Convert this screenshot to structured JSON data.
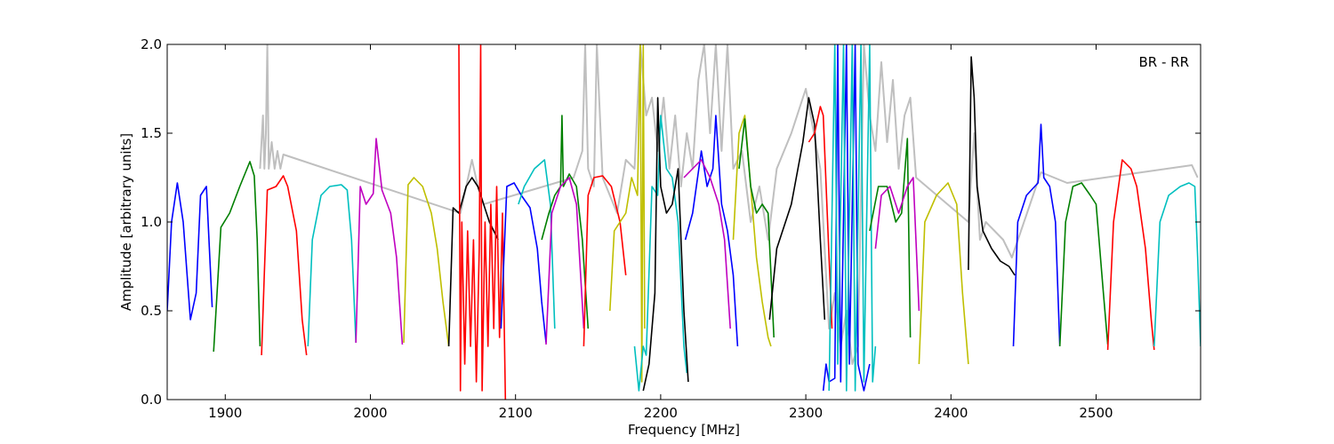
{
  "chart_data": {
    "type": "line",
    "annotation": "BR - RR",
    "xlabel": "Frequency [MHz]",
    "ylabel": "Amplitude [arbitrary units]",
    "xlim": [
      1860,
      2572
    ],
    "ylim": [
      0.0,
      2.0
    ],
    "x_ticks": [
      1900,
      2000,
      2100,
      2200,
      2300,
      2400,
      2500
    ],
    "x_tick_labels": [
      "1900",
      "2000",
      "2100",
      "2200",
      "2300",
      "2400",
      "2500"
    ],
    "y_ticks": [
      0.0,
      0.5,
      1.0,
      1.5,
      2.0
    ],
    "y_tick_labels": [
      "0.0",
      "0.5",
      "1.0",
      "1.5",
      "2.0"
    ],
    "grid": false,
    "colors": {
      "background_series": "#bfbfbf",
      "blue": "#0000ff",
      "green": "#007f00",
      "red": "#ff0000",
      "cyan": "#00bfbf",
      "magenta": "#bf00bf",
      "olive": "#bfbf00",
      "black": "#000000"
    },
    "background_series": {
      "color": "background_series",
      "x": [
        1924,
        1926,
        1927,
        1928,
        1929,
        1930,
        1932,
        1934,
        1936,
        1938,
        1940,
        2062,
        2066,
        2070,
        2074,
        2078,
        2140,
        2146,
        2148,
        2150,
        2154,
        2156,
        2160,
        2170,
        2176,
        2182,
        2186,
        2190,
        2194,
        2198,
        2202,
        2206,
        2210,
        2214,
        2218,
        2222,
        2226,
        2230,
        2234,
        2238,
        2242,
        2246,
        2250,
        2256,
        2262,
        2268,
        2274,
        2280,
        2290,
        2300,
        2310,
        2316,
        2320,
        2324,
        2328,
        2332,
        2336,
        2340,
        2344,
        2348,
        2352,
        2356,
        2360,
        2364,
        2368,
        2372,
        2376,
        2412,
        2416,
        2420,
        2424,
        2430,
        2436,
        2442,
        2462,
        2480,
        2566,
        2570
      ],
      "y": [
        1.3,
        1.6,
        1.3,
        1.5,
        2.0,
        1.3,
        1.45,
        1.3,
        1.4,
        1.3,
        1.38,
        1.05,
        1.2,
        1.35,
        1.2,
        1.1,
        1.25,
        1.4,
        2.0,
        1.3,
        1.2,
        2.0,
        1.25,
        1.05,
        1.35,
        1.3,
        2.0,
        1.6,
        1.7,
        1.4,
        1.7,
        1.3,
        1.6,
        1.2,
        1.5,
        1.3,
        1.8,
        2.0,
        1.5,
        2.0,
        1.4,
        2.0,
        1.3,
        1.4,
        1.0,
        1.2,
        0.9,
        1.3,
        1.5,
        1.75,
        1.3,
        0.4,
        0.6,
        0.3,
        0.5,
        0.2,
        0.3,
        2.0,
        1.6,
        1.4,
        1.9,
        1.45,
        1.8,
        1.3,
        1.6,
        1.7,
        1.25,
        1.0,
        1.5,
        0.9,
        1.0,
        0.95,
        0.9,
        0.8,
        1.28,
        1.22,
        1.32,
        1.25
      ]
    },
    "series": [
      {
        "color": "blue",
        "x": [
          1860,
          1863,
          1867,
          1871,
          1876,
          1880,
          1883,
          1887,
          1891
        ],
        "y": [
          0.5,
          1.0,
          1.22,
          1.0,
          0.45,
          0.6,
          1.15,
          1.2,
          0.52
        ]
      },
      {
        "color": "green",
        "x": [
          1892,
          1897,
          1903,
          1910,
          1917,
          1920,
          1922,
          1924
        ],
        "y": [
          0.27,
          0.97,
          1.05,
          1.2,
          1.34,
          1.26,
          0.9,
          0.3
        ]
      },
      {
        "color": "red",
        "x": [
          1925,
          1927,
          1929,
          1935,
          1940,
          1943,
          1949,
          1953,
          1956
        ],
        "y": [
          0.25,
          0.72,
          1.18,
          1.2,
          1.26,
          1.2,
          0.95,
          0.45,
          0.25
        ]
      },
      {
        "color": "cyan",
        "x": [
          1957,
          1960,
          1966,
          1972,
          1980,
          1984,
          1987,
          1990
        ],
        "y": [
          0.3,
          0.9,
          1.15,
          1.2,
          1.21,
          1.18,
          0.9,
          0.32
        ]
      },
      {
        "color": "magenta",
        "x": [
          1990,
          1993,
          1997,
          2002,
          2004,
          2008,
          2014,
          2018,
          2022
        ],
        "y": [
          0.32,
          1.2,
          1.1,
          1.16,
          1.47,
          1.18,
          1.05,
          0.8,
          0.31
        ]
      },
      {
        "color": "olive",
        "x": [
          2023,
          2026,
          2030,
          2036,
          2042,
          2046,
          2050,
          2054
        ],
        "y": [
          0.32,
          1.21,
          1.25,
          1.2,
          1.05,
          0.85,
          0.55,
          0.3
        ]
      },
      {
        "color": "black",
        "x": [
          2054,
          2057,
          2061,
          2066,
          2070,
          2074,
          2078,
          2082,
          2088
        ],
        "y": [
          0.3,
          1.08,
          1.05,
          1.2,
          1.25,
          1.2,
          1.1,
          1.0,
          0.9
        ]
      },
      {
        "color": "red",
        "x": [
          2061,
          2062,
          2063,
          2065,
          2067,
          2069,
          2071,
          2073,
          2075,
          2076,
          2077,
          2079,
          2081,
          2083,
          2085,
          2087,
          2089,
          2091,
          2093
        ],
        "y": [
          2.0,
          0.05,
          1.0,
          0.2,
          0.95,
          0.3,
          0.9,
          0.1,
          0.85,
          2.0,
          0.05,
          1.0,
          0.3,
          1.1,
          0.4,
          1.2,
          0.35,
          1.05,
          0.0
        ]
      },
      {
        "color": "blue",
        "x": [
          2090,
          2094,
          2099,
          2104,
          2110,
          2115,
          2118,
          2121
        ],
        "y": [
          0.4,
          1.2,
          1.22,
          1.15,
          1.08,
          0.85,
          0.55,
          0.32
        ]
      },
      {
        "color": "cyan",
        "x": [
          2102,
          2106,
          2113,
          2120,
          2124,
          2127
        ],
        "y": [
          1.1,
          1.2,
          1.3,
          1.35,
          1.1,
          0.4
        ]
      },
      {
        "color": "green",
        "x": [
          2118,
          2123,
          2127,
          2131,
          2132,
          2133,
          2137,
          2142,
          2146,
          2150
        ],
        "y": [
          0.9,
          1.05,
          1.15,
          1.2,
          1.6,
          1.2,
          1.27,
          1.2,
          0.9,
          0.4
        ]
      },
      {
        "color": "magenta",
        "x": [
          2121,
          2125,
          2131,
          2137,
          2142,
          2147
        ],
        "y": [
          0.31,
          1.05,
          1.2,
          1.25,
          1.1,
          0.4
        ]
      },
      {
        "color": "red",
        "x": [
          2147,
          2150,
          2154,
          2160,
          2166,
          2172,
          2176
        ],
        "y": [
          0.3,
          1.15,
          1.25,
          1.26,
          1.2,
          1.0,
          0.7
        ]
      },
      {
        "color": "olive",
        "x": [
          2165,
          2168,
          2172,
          2176,
          2180,
          2184,
          2186,
          2187,
          2188,
          2189
        ],
        "y": [
          0.5,
          0.95,
          1.0,
          1.05,
          1.25,
          1.15,
          2.0,
          0.1,
          2.0,
          0.4
        ]
      },
      {
        "color": "cyan",
        "x": [
          2182,
          2185,
          2188,
          2190,
          2194,
          2198,
          2200,
          2204,
          2208,
          2212,
          2216,
          2218
        ],
        "y": [
          0.3,
          0.05,
          0.3,
          0.25,
          1.2,
          1.15,
          1.6,
          1.3,
          1.25,
          1.0,
          0.3,
          0.15
        ]
      },
      {
        "color": "black",
        "x": [
          2188,
          2192,
          2196,
          2198,
          2200,
          2204,
          2208,
          2212,
          2216,
          2219
        ],
        "y": [
          0.05,
          0.2,
          0.6,
          1.7,
          1.2,
          1.05,
          1.1,
          1.3,
          0.5,
          0.1
        ]
      },
      {
        "color": "blue",
        "x": [
          2217,
          2222,
          2228,
          2232,
          2236,
          2238,
          2242,
          2246,
          2250,
          2253
        ],
        "y": [
          0.9,
          1.05,
          1.4,
          1.2,
          1.3,
          1.6,
          1.1,
          0.95,
          0.7,
          0.3
        ]
      },
      {
        "color": "magenta",
        "x": [
          2216,
          2222,
          2228,
          2234,
          2240,
          2244,
          2248
        ],
        "y": [
          1.25,
          1.3,
          1.35,
          1.25,
          1.1,
          0.9,
          0.4
        ]
      },
      {
        "color": "olive",
        "x": [
          2250,
          2254,
          2258,
          2262,
          2266,
          2270,
          2274,
          2276
        ],
        "y": [
          0.9,
          1.5,
          1.6,
          1.2,
          0.8,
          0.55,
          0.35,
          0.3
        ]
      },
      {
        "color": "green",
        "x": [
          2254,
          2258,
          2262,
          2266,
          2270,
          2274,
          2278
        ],
        "y": [
          1.3,
          1.58,
          1.2,
          1.05,
          1.1,
          1.05,
          0.35
        ]
      },
      {
        "color": "black",
        "x": [
          2275,
          2280,
          2290,
          2298,
          2302,
          2306,
          2310,
          2313
        ],
        "y": [
          0.45,
          0.85,
          1.1,
          1.45,
          1.7,
          1.55,
          0.9,
          0.45
        ]
      },
      {
        "color": "red",
        "x": [
          2302,
          2306,
          2310,
          2312,
          2316,
          2318
        ],
        "y": [
          1.45,
          1.5,
          1.65,
          1.6,
          0.8,
          0.4
        ]
      },
      {
        "color": "blue",
        "x": [
          2312,
          2314,
          2316,
          2320,
          2322,
          2324,
          2328,
          2330,
          2334,
          2336,
          2340,
          2344
        ],
        "y": [
          0.05,
          0.2,
          0.1,
          0.12,
          2.0,
          0.1,
          2.0,
          0.2,
          2.0,
          0.2,
          0.05,
          0.2
        ]
      },
      {
        "color": "cyan",
        "x": [
          2316,
          2320,
          2322,
          2326,
          2328,
          2332,
          2334,
          2338,
          2340,
          2344,
          2346,
          2348
        ],
        "y": [
          0.05,
          2.0,
          0.2,
          2.0,
          0.05,
          2.0,
          0.05,
          2.0,
          0.1,
          2.0,
          0.1,
          0.3
        ]
      },
      {
        "color": "green",
        "x": [
          2344,
          2350,
          2356,
          2362,
          2366,
          2370,
          2372
        ],
        "y": [
          0.95,
          1.2,
          1.2,
          1.0,
          1.05,
          1.47,
          0.35
        ]
      },
      {
        "color": "magenta",
        "x": [
          2348,
          2352,
          2358,
          2364,
          2370,
          2374,
          2378
        ],
        "y": [
          0.85,
          1.15,
          1.2,
          1.05,
          1.2,
          1.25,
          0.5
        ]
      },
      {
        "color": "olive",
        "x": [
          2378,
          2382,
          2390,
          2398,
          2404,
          2408,
          2412
        ],
        "y": [
          0.2,
          1.0,
          1.15,
          1.22,
          1.1,
          0.6,
          0.2
        ]
      },
      {
        "color": "black",
        "x": [
          2412,
          2414,
          2416,
          2418,
          2422,
          2428,
          2434,
          2440,
          2444
        ],
        "y": [
          0.73,
          1.93,
          1.7,
          1.2,
          0.95,
          0.85,
          0.78,
          0.75,
          0.7
        ]
      },
      {
        "color": "blue",
        "x": [
          2443,
          2446,
          2452,
          2460,
          2462,
          2464,
          2468,
          2472,
          2475
        ],
        "y": [
          0.3,
          1.0,
          1.15,
          1.22,
          1.55,
          1.25,
          1.2,
          1.0,
          0.3
        ]
      },
      {
        "color": "green",
        "x": [
          2475,
          2479,
          2484,
          2490,
          2496,
          2500,
          2505,
          2508
        ],
        "y": [
          0.3,
          1.0,
          1.2,
          1.22,
          1.15,
          1.1,
          0.6,
          0.31
        ]
      },
      {
        "color": "red",
        "x": [
          2508,
          2512,
          2518,
          2524,
          2528,
          2534,
          2538,
          2540
        ],
        "y": [
          0.28,
          1.0,
          1.35,
          1.3,
          1.2,
          0.85,
          0.45,
          0.28
        ]
      },
      {
        "color": "cyan",
        "x": [
          2540,
          2544,
          2550,
          2558,
          2564,
          2568,
          2570,
          2572
        ],
        "y": [
          0.3,
          1.0,
          1.15,
          1.2,
          1.22,
          1.2,
          0.8,
          0.3
        ]
      }
    ]
  }
}
